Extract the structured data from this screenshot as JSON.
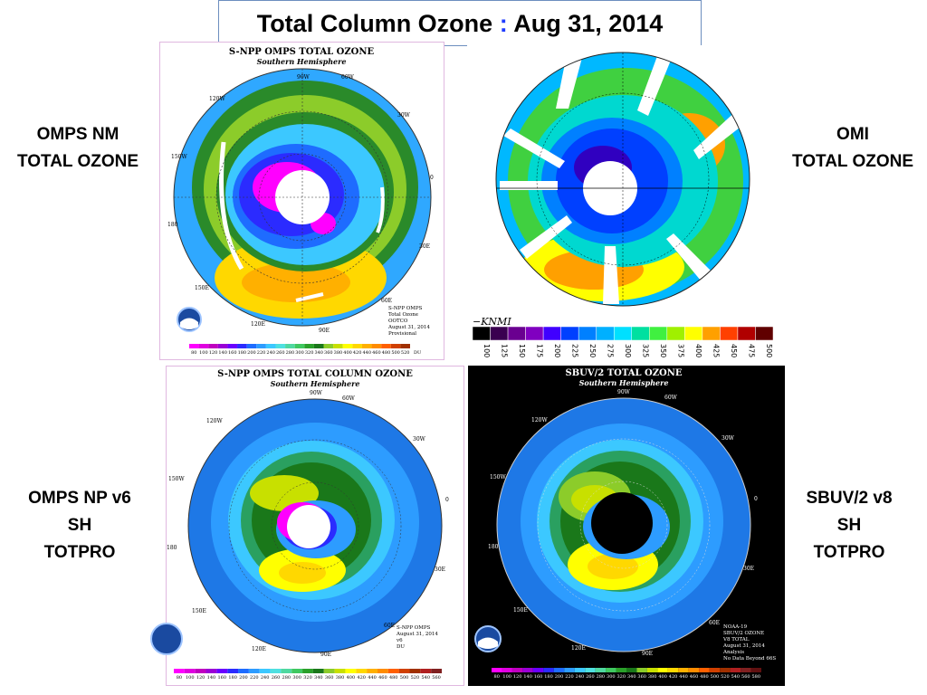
{
  "title": {
    "main": "Total Column Ozone",
    "sep": ":",
    "date": "Aug 31, 2014"
  },
  "labels": {
    "omps_nm": [
      "OMPS  NM",
      "TOTAL OZONE"
    ],
    "omi": [
      "OMI",
      "TOTAL OZONE"
    ],
    "omps_np": [
      "OMPS NP v6",
      "SH",
      "TOTPRO"
    ],
    "sbuv": [
      "SBUV/2 v8",
      "SH",
      "TOTPRO"
    ]
  },
  "panels": {
    "nm": {
      "title": "S-NPP OMPS TOTAL OZONE",
      "subtitle": "Southern Hemisphere",
      "info": [
        "S-NPP OMPS",
        "Total Ozone",
        "OOTCO",
        "August 31, 2014",
        "Provisional"
      ],
      "lon_labels": [
        "90W",
        "60W",
        "120W",
        "30W",
        "150W",
        "0",
        "180",
        "30E",
        "150E",
        "60E",
        "120E",
        "90E"
      ],
      "scale": [
        "80",
        "100",
        "120",
        "140",
        "160",
        "180",
        "200",
        "220",
        "240",
        "260",
        "280",
        "300",
        "320",
        "340",
        "360",
        "380",
        "400",
        "420",
        "440",
        "460",
        "480",
        "500",
        "520"
      ],
      "unit": "DU"
    },
    "omi": {
      "brand": "KNMI",
      "scale": [
        "100",
        "125",
        "150",
        "175",
        "200",
        "225",
        "250",
        "275",
        "300",
        "325",
        "350",
        "375",
        "400",
        "425",
        "450",
        "475",
        "500"
      ]
    },
    "np": {
      "title": "S-NPP OMPS TOTAL COLUMN OZONE",
      "subtitle": "Southern Hemisphere",
      "info": [
        "S-NPP OMPS",
        "August 31, 2014",
        "v6",
        "DU"
      ],
      "lon_labels": [
        "90W",
        "60W",
        "120W",
        "30W",
        "150W",
        "0",
        "180",
        "30E",
        "150E",
        "60E",
        "120E",
        "90E"
      ],
      "scale": [
        "80",
        "100",
        "120",
        "140",
        "160",
        "180",
        "200",
        "220",
        "240",
        "260",
        "280",
        "300",
        "320",
        "340",
        "360",
        "380",
        "400",
        "420",
        "440",
        "460",
        "480",
        "500",
        "520",
        "540",
        "560"
      ]
    },
    "sbuv": {
      "title": "SBUV/2 TOTAL OZONE",
      "subtitle": "Southern Hemisphere",
      "info": [
        "NOAA-19",
        "SBUV/2 OZONE",
        "V8 TOTAL",
        "August 31, 2014",
        "Analysis",
        "No Data Beyond 66S"
      ],
      "lon_labels": [
        "90W",
        "60W",
        "120W",
        "30W",
        "150W",
        "0",
        "180",
        "30E",
        "150E",
        "60E",
        "120E",
        "90E"
      ],
      "scale": [
        "80",
        "100",
        "120",
        "140",
        "160",
        "180",
        "200",
        "220",
        "240",
        "260",
        "280",
        "300",
        "320",
        "340",
        "360",
        "380",
        "400",
        "420",
        "440",
        "460",
        "480",
        "500",
        "520",
        "540",
        "560",
        "580"
      ]
    }
  },
  "colors": {
    "scale_nm": [
      "#ff00ff",
      "#e000e0",
      "#c000c0",
      "#9a00d6",
      "#6a00ff",
      "#2b2bff",
      "#1e6cff",
      "#2d9cff",
      "#3cc8ff",
      "#4fe0e0",
      "#4fd8a0",
      "#3fc860",
      "#2aa02a",
      "#1a781a",
      "#8ccc2a",
      "#c8e000",
      "#ffff00",
      "#ffd800",
      "#ffb000",
      "#ff8c00",
      "#ff6000",
      "#d04000",
      "#a03000"
    ],
    "scale_omi": [
      "#000000",
      "#3a0050",
      "#6a0090",
      "#8000c0",
      "#4000ff",
      "#0040ff",
      "#0080ff",
      "#00b0ff",
      "#00e0ff",
      "#00e0a0",
      "#40f040",
      "#a0f000",
      "#ffff00",
      "#ffa000",
      "#ff4000",
      "#b00000",
      "#600000"
    ]
  }
}
